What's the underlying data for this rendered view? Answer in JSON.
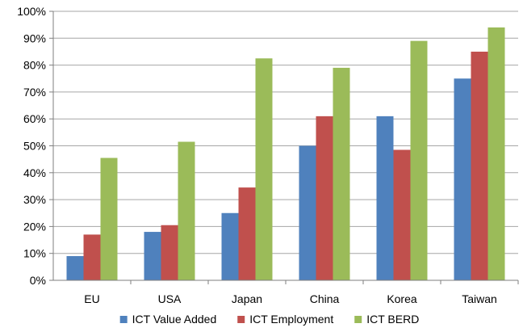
{
  "chart_data": {
    "type": "bar",
    "categories": [
      "EU",
      "USA",
      "Japan",
      "China",
      "Korea",
      "Taiwan"
    ],
    "series": [
      {
        "name": "ICT Value Added",
        "color": "#4F81BD",
        "values": [
          9,
          18,
          25,
          50,
          61,
          75
        ]
      },
      {
        "name": "ICT Employment",
        "color": "#C0504D",
        "values": [
          17,
          20.5,
          34.5,
          61,
          48.5,
          85
        ]
      },
      {
        "name": "ICT BERD",
        "color": "#9BBB59",
        "values": [
          45.5,
          51.5,
          82.5,
          79,
          89,
          94
        ]
      }
    ],
    "y_ticks": [
      "0%",
      "10%",
      "20%",
      "30%",
      "40%",
      "50%",
      "60%",
      "70%",
      "80%",
      "90%",
      "100%"
    ],
    "ylim": [
      0,
      100
    ],
    "grid": true,
    "legend_position": "bottom"
  }
}
